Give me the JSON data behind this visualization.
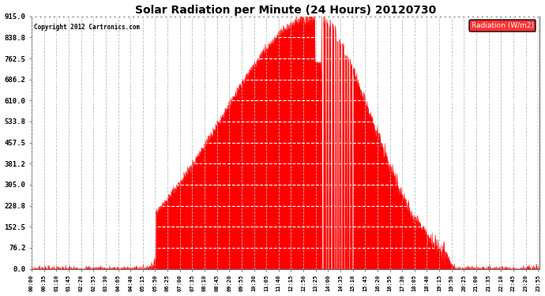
{
  "title": "Solar Radiation per Minute (24 Hours) 20120730",
  "copyright": "Copyright 2012 Cartronics.com",
  "legend_label": "Radiation (W/m2)",
  "bg_color": "#ffffff",
  "fill_color": "#ff0000",
  "line_color": "#ff0000",
  "grid_color": "#bbbbbb",
  "zero_line_color": "#ff0000",
  "ylim": [
    0.0,
    915.0
  ],
  "ytick_values": [
    0.0,
    76.2,
    152.5,
    228.8,
    305.0,
    381.2,
    457.5,
    533.8,
    610.0,
    686.2,
    762.5,
    838.8,
    915.0
  ],
  "ytick_labels": [
    "0.0",
    "76.2",
    "152.5",
    "228.8",
    "305.0",
    "381.2",
    "457.5",
    "533.8",
    "610.0",
    "686.2",
    "762.5",
    "838.8",
    "915.0"
  ],
  "xtick_interval_minutes": 35,
  "total_minutes": 1440,
  "peak_value": 915.0,
  "sunrise_minute": 352,
  "sunset_minute": 1173
}
